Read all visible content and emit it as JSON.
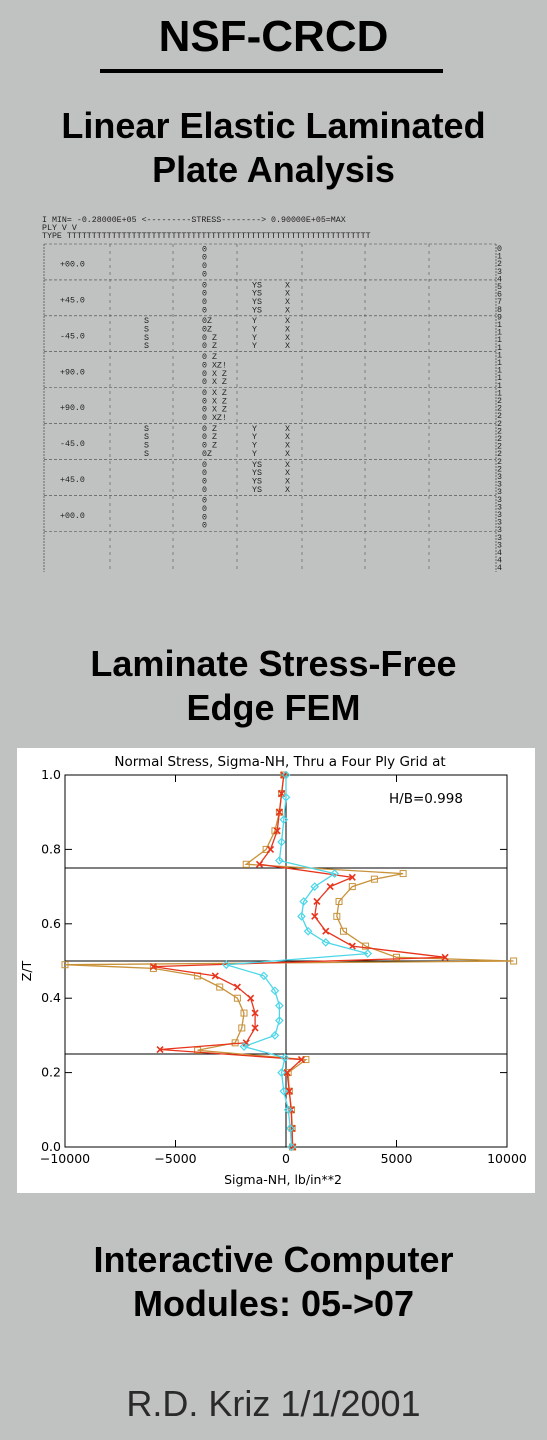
{
  "header": {
    "org": "NSF-CRCD",
    "section1_title": "Linear Elastic Laminated Plate Analysis",
    "section2_title": "Laminate Stress-Free Edge FEM",
    "section3_title": "Interactive Computer Modules: 05->07",
    "author": "R.D. Kriz 1/1/2001"
  },
  "printout": {
    "line1": "I         MIN= -0.28000E+05  <---------STRESS-------->  0.90000E+05=MAX",
    "line2": "   PLY    V                                                          V",
    "line3": "   TYPE   TTTTTTTTTTTTTTTTTTTTTTTTTTTTTTTTTTTTTTTTTTTTTTTTTTTTTTTTTTTTT",
    "plies": [
      "+00.0",
      "+45.0",
      "-45.0",
      "+90.0",
      "+90.0",
      "-45.0",
      "+45.0",
      "+00.0"
    ],
    "row_numbers": [
      "0",
      "1",
      "2",
      "3",
      "4",
      "5",
      "6",
      "7",
      "8",
      "9",
      "1",
      "1",
      "1",
      "1",
      "1",
      "1",
      "1",
      "1",
      "1",
      "1",
      "2",
      "2",
      "2",
      "2",
      "2",
      "2",
      "2",
      "2",
      "2",
      "2",
      "3",
      "3",
      "3",
      "3",
      "3",
      "3",
      "3",
      "3",
      "3",
      "3",
      "4",
      "4",
      "4",
      "4"
    ],
    "rows": [
      [
        "0",
        "",
        "",
        "",
        ""
      ],
      [
        "0",
        "",
        "",
        "",
        ""
      ],
      [
        "0",
        "",
        "",
        "",
        ""
      ],
      [
        "0",
        "",
        "",
        "",
        ""
      ],
      [
        "0",
        "",
        "YS",
        "X",
        ""
      ],
      [
        "0",
        "",
        "YS",
        "X",
        ""
      ],
      [
        "0",
        "",
        "YS",
        "X",
        ""
      ],
      [
        "0",
        "",
        "YS",
        "X",
        ""
      ],
      [
        "0Z",
        "S",
        "Y",
        "X",
        ""
      ],
      [
        "0Z",
        "S",
        "Y",
        "X",
        ""
      ],
      [
        "0 Z",
        "S",
        "Y",
        "X",
        ""
      ],
      [
        "0  Z",
        "S",
        "Y",
        "X",
        ""
      ],
      [
        "0 Z",
        "",
        "",
        "",
        ""
      ],
      [
        "0  XZ!",
        "",
        "",
        "",
        ""
      ],
      [
        "0  X Z",
        "",
        "",
        "",
        ""
      ],
      [
        "0  X Z",
        "",
        "",
        "",
        ""
      ],
      [
        "0 X Z",
        "",
        "",
        "",
        ""
      ],
      [
        "0  X Z",
        "",
        "",
        "",
        ""
      ],
      [
        "0  X Z",
        "",
        "",
        "",
        ""
      ],
      [
        "0  XZ!",
        "",
        "",
        "",
        ""
      ],
      [
        "0 Z",
        "S",
        "Y",
        "X",
        ""
      ],
      [
        "0 Z",
        "S",
        "Y",
        "X",
        ""
      ],
      [
        "0 Z",
        "S",
        "Y",
        "X",
        ""
      ],
      [
        "0Z",
        "S",
        "Y",
        "X",
        ""
      ],
      [
        "0",
        "",
        "YS",
        "X",
        ""
      ],
      [
        "0",
        "",
        "YS",
        "X",
        ""
      ],
      [
        "0",
        "",
        "YS",
        "X",
        ""
      ],
      [
        "0",
        "",
        "YS",
        "X",
        ""
      ],
      [
        "0",
        "",
        "",
        "",
        ""
      ],
      [
        "0",
        "",
        "",
        "",
        ""
      ],
      [
        "0",
        "",
        "",
        "",
        ""
      ],
      [
        "0",
        "",
        "",
        "",
        ""
      ]
    ]
  },
  "chart_data": {
    "type": "line",
    "title": "Normal Stress, Sigma-NH, Thru a Four Ply Grid at",
    "annotation": "H/B=0.998",
    "xlabel": "Sigma-NH,  lb/in**2",
    "ylabel": "Z/T",
    "xlim": [
      -10000,
      10000
    ],
    "ylim": [
      0.0,
      1.0
    ],
    "xticks": [
      -10000,
      -5000,
      0,
      5000,
      10000
    ],
    "yticks": [
      0.0,
      0.2,
      0.4,
      0.6,
      0.8,
      1.0
    ],
    "xtick_labels": [
      "−10000",
      "−5000",
      "0",
      "5000",
      "10000"
    ],
    "ytick_labels": [
      "0.0",
      "0.2",
      "0.4",
      "0.6",
      "0.8",
      "1.0"
    ],
    "hlines": [
      0.25,
      0.5,
      0.75
    ],
    "vline": 0,
    "series": [
      {
        "color": "#c8923a",
        "marker": "square",
        "points": [
          [
            300,
            0.0
          ],
          [
            280,
            0.05
          ],
          [
            250,
            0.1
          ],
          [
            150,
            0.15
          ],
          [
            100,
            0.2
          ],
          [
            900,
            0.235
          ],
          [
            -4000,
            0.26
          ],
          [
            -2300,
            0.28
          ],
          [
            -2000,
            0.32
          ],
          [
            -1900,
            0.36
          ],
          [
            -2200,
            0.4
          ],
          [
            -3000,
            0.43
          ],
          [
            -4000,
            0.46
          ],
          [
            -6000,
            0.48
          ],
          [
            -10000,
            0.49
          ],
          [
            10300,
            0.5
          ],
          [
            5000,
            0.51
          ],
          [
            3600,
            0.54
          ],
          [
            2600,
            0.58
          ],
          [
            2300,
            0.62
          ],
          [
            2400,
            0.66
          ],
          [
            3000,
            0.7
          ],
          [
            4000,
            0.72
          ],
          [
            5300,
            0.735
          ],
          [
            -1800,
            0.76
          ],
          [
            -900,
            0.8
          ],
          [
            -500,
            0.85
          ],
          [
            -300,
            0.9
          ],
          [
            -200,
            0.95
          ],
          [
            -100,
            1.0
          ]
        ]
      },
      {
        "color": "#e8341c",
        "marker": "x",
        "points": [
          [
            300,
            0.0
          ],
          [
            270,
            0.05
          ],
          [
            230,
            0.1
          ],
          [
            150,
            0.15
          ],
          [
            50,
            0.2
          ],
          [
            700,
            0.235
          ],
          [
            -5700,
            0.262
          ],
          [
            -1800,
            0.28
          ],
          [
            -1400,
            0.32
          ],
          [
            -1400,
            0.36
          ],
          [
            -1600,
            0.4
          ],
          [
            -2200,
            0.43
          ],
          [
            -3200,
            0.46
          ],
          [
            -6000,
            0.485
          ],
          [
            7200,
            0.51
          ],
          [
            3000,
            0.54
          ],
          [
            1800,
            0.58
          ],
          [
            1300,
            0.62
          ],
          [
            1400,
            0.66
          ],
          [
            2000,
            0.7
          ],
          [
            3000,
            0.725
          ],
          [
            -1200,
            0.76
          ],
          [
            -700,
            0.8
          ],
          [
            -400,
            0.85
          ],
          [
            -300,
            0.9
          ],
          [
            -200,
            0.95
          ],
          [
            -100,
            1.0
          ]
        ]
      },
      {
        "color": "#4cd6e8",
        "marker": "diamond",
        "points": [
          [
            250,
            0.0
          ],
          [
            200,
            0.05
          ],
          [
            100,
            0.1
          ],
          [
            -100,
            0.15
          ],
          [
            -200,
            0.2
          ],
          [
            -50,
            0.24
          ],
          [
            -1900,
            0.27
          ],
          [
            -500,
            0.3
          ],
          [
            -300,
            0.34
          ],
          [
            -300,
            0.38
          ],
          [
            -500,
            0.42
          ],
          [
            -1000,
            0.46
          ],
          [
            -2700,
            0.49
          ],
          [
            3700,
            0.52
          ],
          [
            1800,
            0.55
          ],
          [
            1000,
            0.58
          ],
          [
            700,
            0.62
          ],
          [
            800,
            0.66
          ],
          [
            1300,
            0.7
          ],
          [
            2200,
            0.735
          ],
          [
            -300,
            0.77
          ],
          [
            -200,
            0.82
          ],
          [
            -100,
            0.88
          ],
          [
            0,
            0.94
          ],
          [
            0,
            1.0
          ]
        ]
      }
    ]
  }
}
